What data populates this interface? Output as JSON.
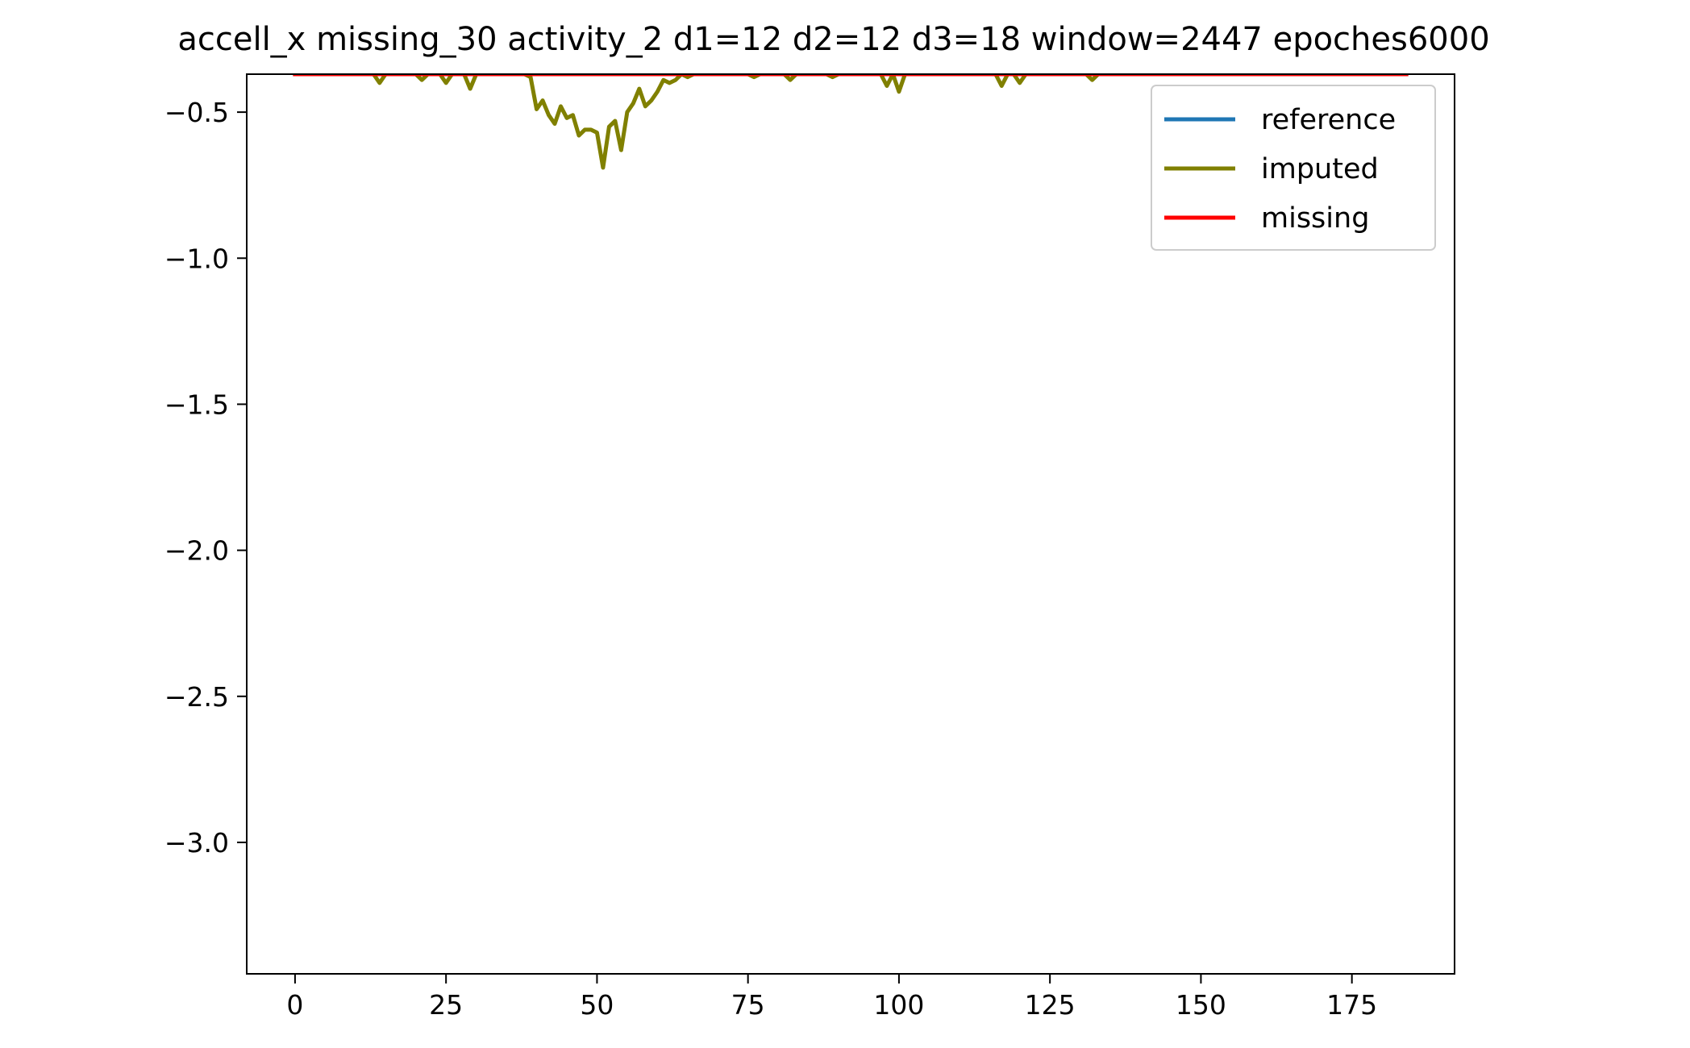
{
  "chart_data": {
    "type": "line",
    "title": "accell_x missing_30 activity_2 d1=12 d2=12 d3=18 window=2447 epoches6000",
    "xlabel": "",
    "ylabel": "",
    "xlim": [
      -8,
      192
    ],
    "ylim": [
      -3.45,
      -0.37
    ],
    "x_ticks": [
      0,
      25,
      50,
      75,
      100,
      125,
      150,
      175
    ],
    "x_tick_labels": [
      "0",
      "25",
      "50",
      "75",
      "100",
      "125",
      "150",
      "175"
    ],
    "y_ticks": [
      -0.5,
      -1.0,
      -1.5,
      -2.0,
      -2.5,
      -3.0
    ],
    "y_tick_labels": [
      "−0.5",
      "−1.0",
      "−1.5",
      "−2.0",
      "−2.5",
      "−3.0"
    ],
    "grid": false,
    "legend_position": "top-right",
    "series": [
      {
        "name": "reference",
        "color": "#1f77b4",
        "x": [
          0,
          184
        ],
        "y": [
          -0.37,
          -0.37
        ]
      },
      {
        "name": "imputed",
        "color": "#808000",
        "x": [
          0,
          13,
          14,
          15,
          20,
          21,
          22,
          24,
          25,
          26,
          28,
          29,
          30,
          38,
          39,
          40,
          41,
          42,
          43,
          44,
          45,
          46,
          47,
          48,
          49,
          50,
          51,
          52,
          53,
          54,
          55,
          56,
          57,
          58,
          59,
          60,
          61,
          62,
          63,
          64,
          65,
          66,
          75,
          76,
          77,
          81,
          82,
          83,
          88,
          89,
          90,
          97,
          98,
          99,
          100,
          101,
          116,
          117,
          118,
          119,
          120,
          121,
          131,
          132,
          133,
          184
        ],
        "y": [
          -0.37,
          -0.37,
          -0.4,
          -0.37,
          -0.37,
          -0.39,
          -0.37,
          -0.37,
          -0.4,
          -0.37,
          -0.37,
          -0.42,
          -0.37,
          -0.37,
          -0.38,
          -0.49,
          -0.46,
          -0.51,
          -0.54,
          -0.48,
          -0.52,
          -0.51,
          -0.58,
          -0.56,
          -0.56,
          -0.57,
          -0.69,
          -0.55,
          -0.53,
          -0.63,
          -0.5,
          -0.47,
          -0.42,
          -0.48,
          -0.46,
          -0.43,
          -0.39,
          -0.4,
          -0.39,
          -0.37,
          -0.38,
          -0.37,
          -0.37,
          -0.38,
          -0.37,
          -0.37,
          -0.39,
          -0.37,
          -0.37,
          -0.38,
          -0.37,
          -0.37,
          -0.41,
          -0.37,
          -0.43,
          -0.37,
          -0.37,
          -0.41,
          -0.37,
          -0.37,
          -0.4,
          -0.37,
          -0.37,
          -0.39,
          -0.37,
          -0.37
        ]
      },
      {
        "name": "missing",
        "color": "#ff0000",
        "x": [
          0,
          184
        ],
        "y": [
          -0.37,
          -0.37
        ]
      }
    ]
  }
}
